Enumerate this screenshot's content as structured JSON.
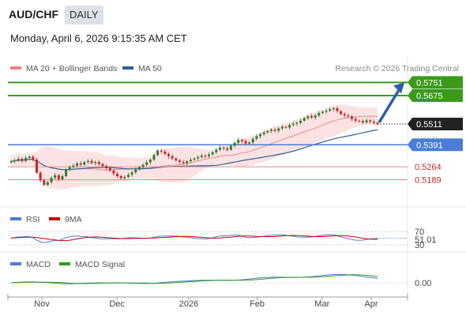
{
  "header": {
    "symbol": "AUD/CHF",
    "timeframe": "DAILY",
    "datetime": "Monday, April 6, 2026 9:15:35 AM CET"
  },
  "legend": {
    "bollinger": {
      "label": "MA 20 + Bollinger Bands",
      "color": "#f08080"
    },
    "ma50": {
      "label": "MA 50",
      "color": "#2f5f99"
    },
    "credit": "Research © 2026 Trading Central"
  },
  "colors": {
    "up": "#2e7d32",
    "down": "#c62828",
    "resistance": "#3a9a1a",
    "support": "#4a7ed6",
    "minor": "#f08a8a",
    "arrow": "#2b5ea8",
    "last": "#222222"
  },
  "chart_data": [
    {
      "type": "candlestick",
      "timeframe": "DAILY",
      "x_labels": [
        "Nov",
        "Dec",
        "2026",
        "Feb",
        "Mar",
        "Apr"
      ],
      "y_range": [
        0.505,
        0.578
      ],
      "last_price": "0.5511",
      "levels": [
        {
          "value": 0.5751,
          "label": "0.5751",
          "kind": "resistance",
          "badge": true
        },
        {
          "value": 0.5675,
          "label": "0.5675",
          "kind": "resistance",
          "badge": true
        },
        {
          "value": 0.5391,
          "label": "0.5391",
          "kind": "support",
          "badge": true
        },
        {
          "value": 0.5264,
          "label": "0.5264",
          "kind": "minor",
          "badge": false
        },
        {
          "value": 0.5189,
          "label": "0.5189",
          "kind": "minor",
          "badge": false
        }
      ],
      "projection": {
        "from": 0.5511,
        "to": 0.5751
      },
      "closes": [
        0.5295,
        0.5301,
        0.531,
        0.5298,
        0.5315,
        0.5322,
        0.5305,
        0.523,
        0.5185,
        0.516,
        0.5175,
        0.52,
        0.5215,
        0.5192,
        0.521,
        0.5248,
        0.5262,
        0.527,
        0.5284,
        0.5276,
        0.5291,
        0.5298,
        0.5285,
        0.5292,
        0.528,
        0.5268,
        0.5256,
        0.5242,
        0.5225,
        0.521,
        0.5198,
        0.5205,
        0.5218,
        0.5232,
        0.5248,
        0.5262,
        0.5275,
        0.529,
        0.5305,
        0.5332,
        0.5358,
        0.5352,
        0.5338,
        0.5325,
        0.5312,
        0.53,
        0.5292,
        0.5285,
        0.5296,
        0.5305,
        0.5312,
        0.532,
        0.5328,
        0.5325,
        0.5335,
        0.5348,
        0.5362,
        0.5375,
        0.537,
        0.5362,
        0.5385,
        0.5402,
        0.542,
        0.5412,
        0.5398,
        0.5405,
        0.5425,
        0.544,
        0.5452,
        0.5462,
        0.547,
        0.5478,
        0.5472,
        0.5485,
        0.5495,
        0.549,
        0.5505,
        0.5512,
        0.5518,
        0.553,
        0.5545,
        0.5556,
        0.5548,
        0.556,
        0.5575,
        0.5582,
        0.5588,
        0.5596,
        0.5602,
        0.5585,
        0.5568,
        0.556,
        0.5555,
        0.554,
        0.553,
        0.5528,
        0.552,
        0.5532,
        0.5525,
        0.5518,
        0.5511
      ]
    },
    {
      "type": "line",
      "name": "RSI",
      "series": [
        {
          "name": "RSI",
          "color": "#4a7ed6"
        },
        {
          "name": "9MA",
          "color": "#cc0000"
        }
      ],
      "levels": [
        {
          "value": 70,
          "label": "70"
        },
        {
          "value": 30,
          "label": "30"
        }
      ],
      "ylim": [
        25,
        75
      ],
      "current": "51.01"
    },
    {
      "type": "line",
      "name": "MACD",
      "series": [
        {
          "name": "MACD",
          "color": "#4a7ed6"
        },
        {
          "name": "MACD Signal",
          "color": "#2e9a1a"
        }
      ],
      "zero_label": "0.00"
    }
  ],
  "indicators": {
    "rsi": {
      "label": "RSI",
      "ma_label": "9MA"
    },
    "macd": {
      "label": "MACD",
      "signal_label": "MACD Signal"
    }
  }
}
